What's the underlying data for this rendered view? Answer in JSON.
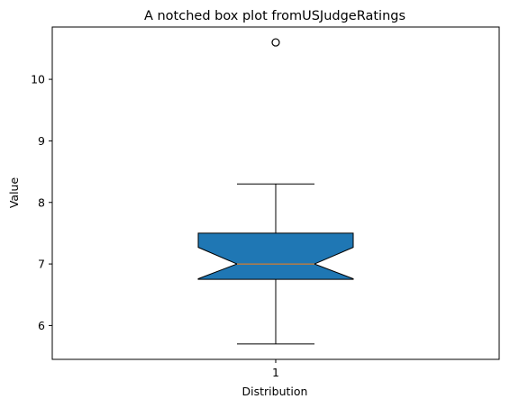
{
  "chart_data": {
    "type": "box",
    "notched": true,
    "title": "A notched box plot fromUSJudgeRatings",
    "xlabel": "Distribution",
    "ylabel": "Value",
    "ylim": [
      5.45,
      10.85
    ],
    "yticks": [
      6,
      7,
      8,
      9,
      10
    ],
    "categories": [
      "1"
    ],
    "boxes": [
      {
        "category": "1",
        "whisker_low": 5.7,
        "q1": 6.75,
        "median": 7.0,
        "q3": 7.5,
        "whisker_high": 8.3,
        "notch_low": 6.76,
        "notch_high": 7.27,
        "outliers": [
          10.6
        ]
      }
    ],
    "colors": {
      "box_fill": "#1f77b4",
      "median_line": "#ff7f0e",
      "edge": "#000000"
    },
    "grid": false,
    "legend": "none"
  }
}
